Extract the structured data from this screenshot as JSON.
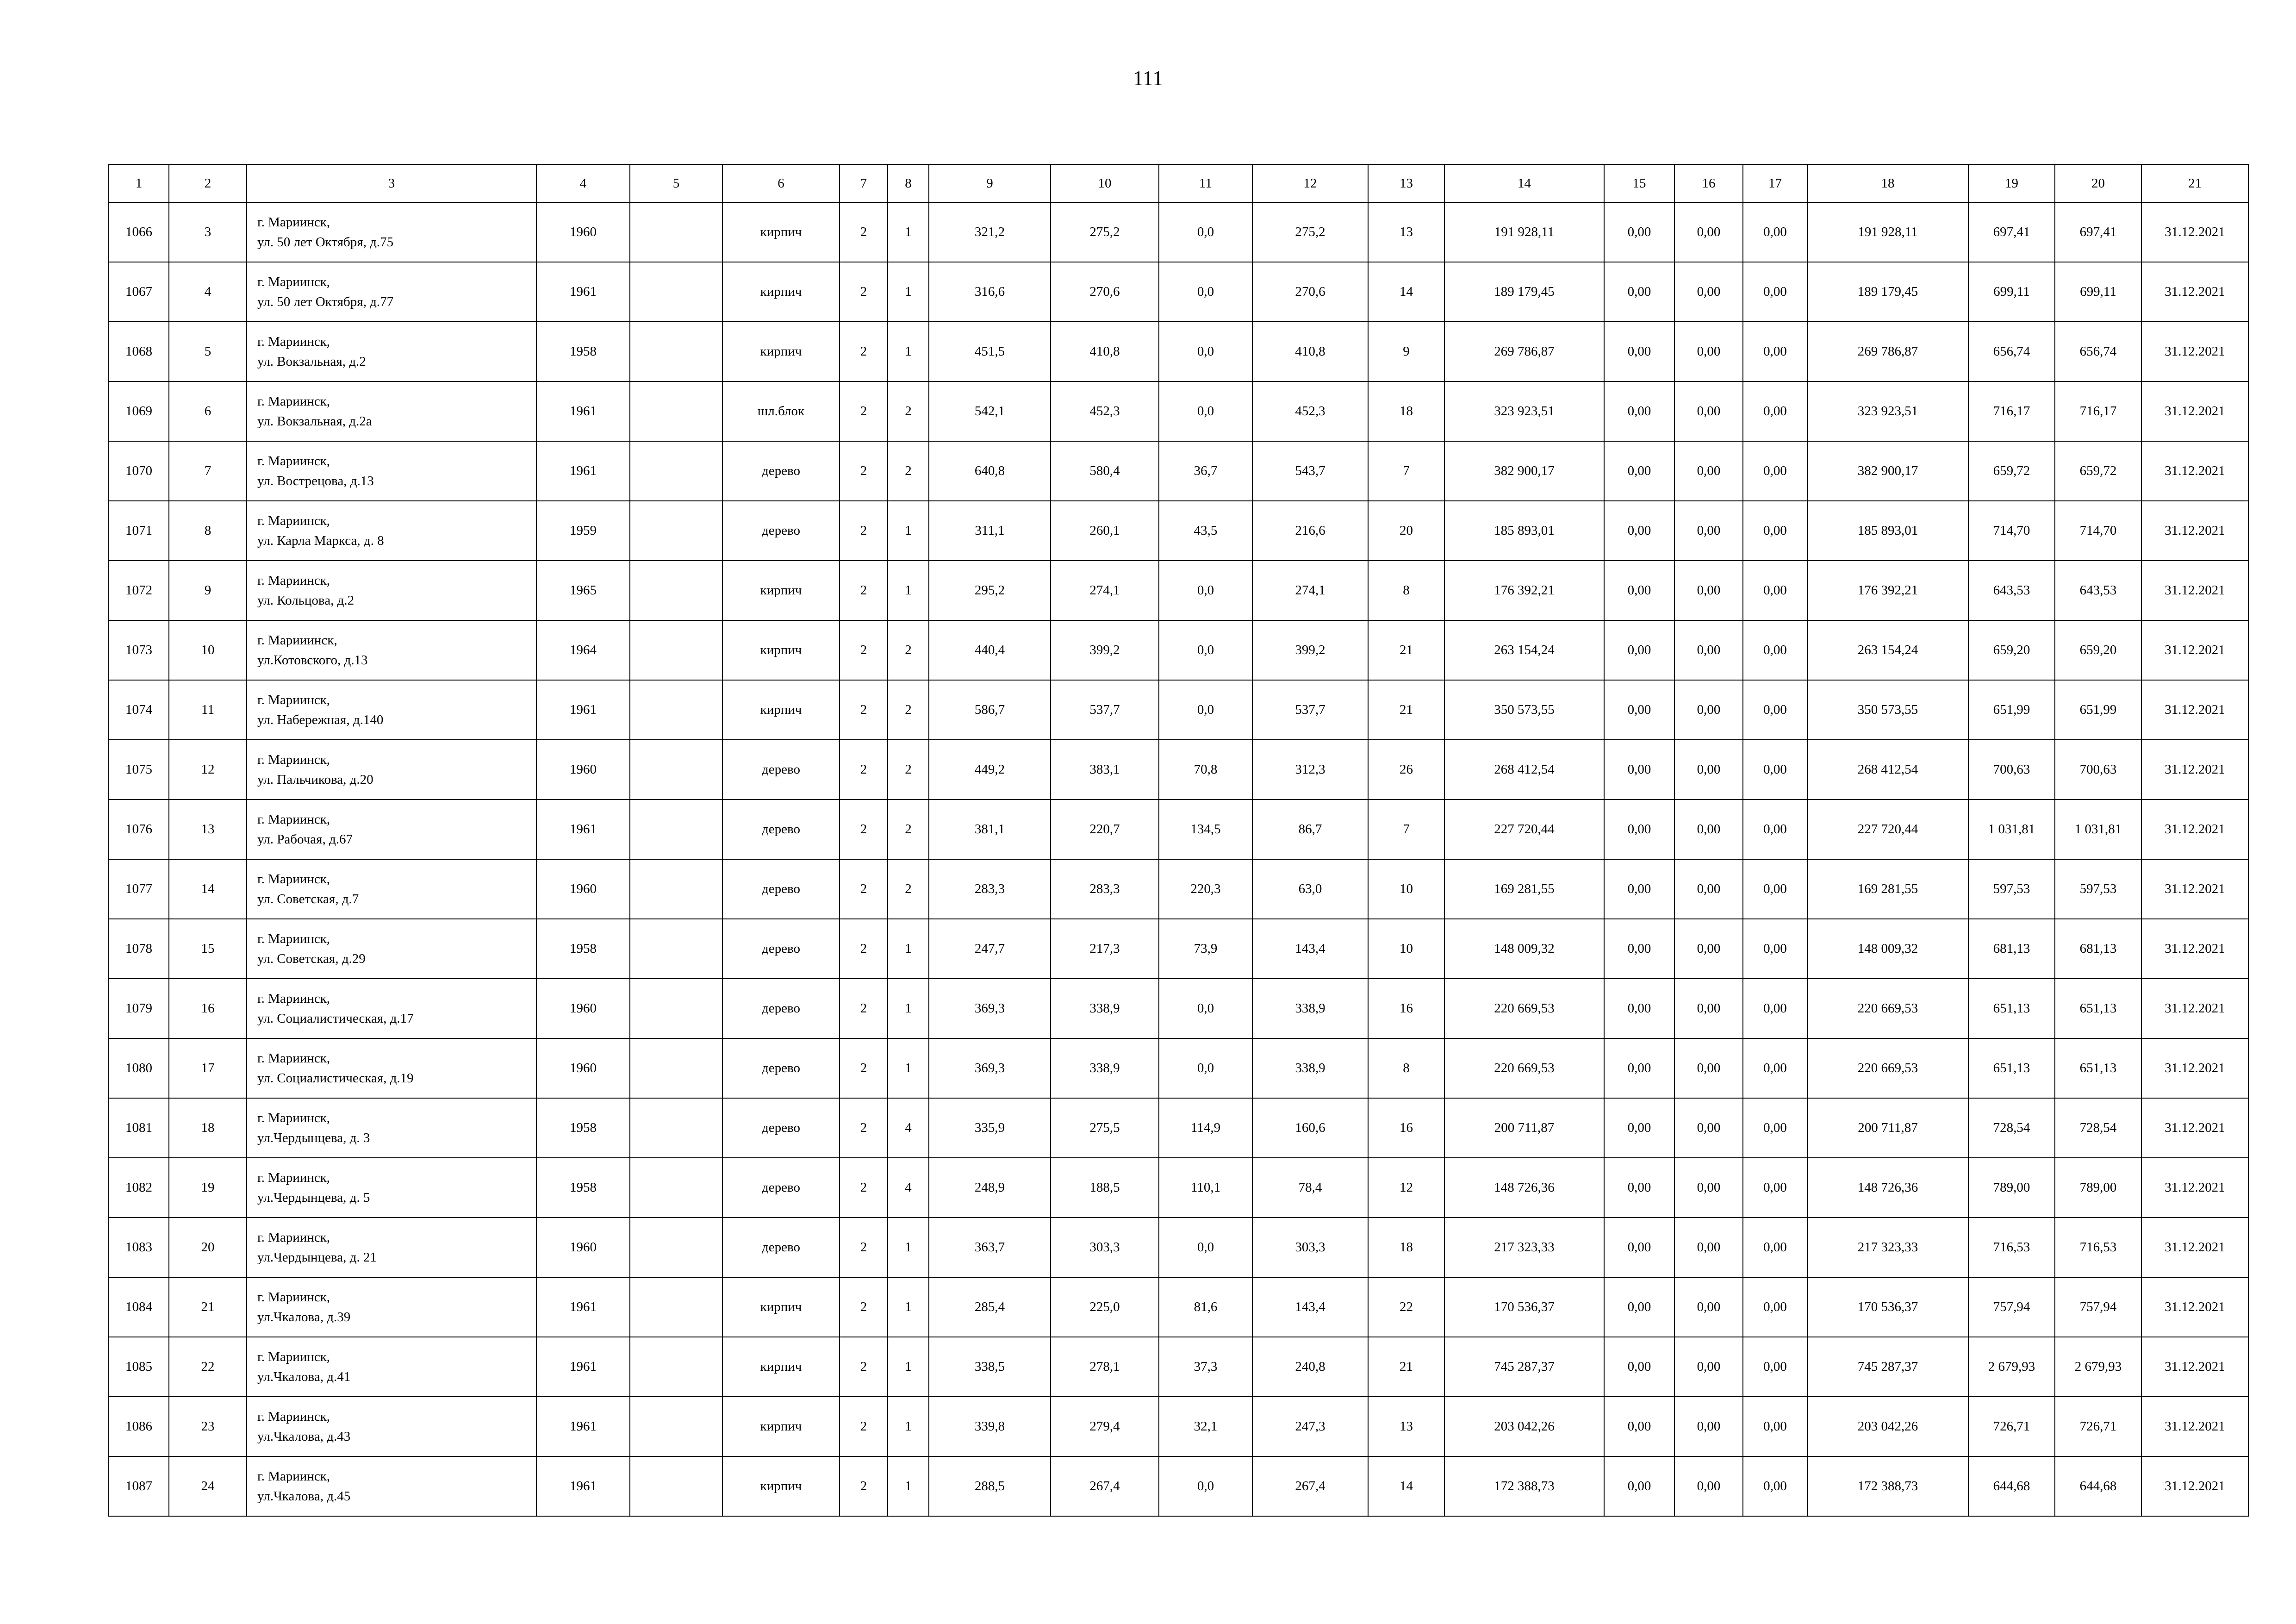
{
  "page_number": "111",
  "table": {
    "headers": [
      "1",
      "2",
      "3",
      "4",
      "5",
      "6",
      "7",
      "8",
      "9",
      "10",
      "11",
      "12",
      "13",
      "14",
      "15",
      "16",
      "17",
      "18",
      "19",
      "20",
      "21"
    ],
    "rows": [
      [
        "1066",
        "3",
        [
          "г. Мариинск,",
          "ул. 50 лет Октября, д.75"
        ],
        "1960",
        "",
        "кирпич",
        "2",
        "1",
        "321,2",
        "275,2",
        "0,0",
        "275,2",
        "13",
        "191 928,11",
        "0,00",
        "0,00",
        "0,00",
        "191 928,11",
        "697,41",
        "697,41",
        "31.12.2021"
      ],
      [
        "1067",
        "4",
        [
          "г. Мариинск,",
          "ул. 50 лет Октября, д.77"
        ],
        "1961",
        "",
        "кирпич",
        "2",
        "1",
        "316,6",
        "270,6",
        "0,0",
        "270,6",
        "14",
        "189 179,45",
        "0,00",
        "0,00",
        "0,00",
        "189 179,45",
        "699,11",
        "699,11",
        "31.12.2021"
      ],
      [
        "1068",
        "5",
        [
          "г. Мариинск,",
          "ул. Вокзальная, д.2"
        ],
        "1958",
        "",
        "кирпич",
        "2",
        "1",
        "451,5",
        "410,8",
        "0,0",
        "410,8",
        "9",
        "269 786,87",
        "0,00",
        "0,00",
        "0,00",
        "269 786,87",
        "656,74",
        "656,74",
        "31.12.2021"
      ],
      [
        "1069",
        "6",
        [
          "г. Мариинск,",
          "ул. Вокзальная, д.2а"
        ],
        "1961",
        "",
        "шл.блок",
        "2",
        "2",
        "542,1",
        "452,3",
        "0,0",
        "452,3",
        "18",
        "323 923,51",
        "0,00",
        "0,00",
        "0,00",
        "323 923,51",
        "716,17",
        "716,17",
        "31.12.2021"
      ],
      [
        "1070",
        "7",
        [
          "г. Мариинск,",
          "ул. Вострецова, д.13"
        ],
        "1961",
        "",
        "дерево",
        "2",
        "2",
        "640,8",
        "580,4",
        "36,7",
        "543,7",
        "7",
        "382 900,17",
        "0,00",
        "0,00",
        "0,00",
        "382 900,17",
        "659,72",
        "659,72",
        "31.12.2021"
      ],
      [
        "1071",
        "8",
        [
          "г. Мариинск,",
          "ул. Карла Маркса, д. 8"
        ],
        "1959",
        "",
        "дерево",
        "2",
        "1",
        "311,1",
        "260,1",
        "43,5",
        "216,6",
        "20",
        "185 893,01",
        "0,00",
        "0,00",
        "0,00",
        "185 893,01",
        "714,70",
        "714,70",
        "31.12.2021"
      ],
      [
        "1072",
        "9",
        [
          "г. Мариинск,",
          "ул. Кольцова, д.2"
        ],
        "1965",
        "",
        "кирпич",
        "2",
        "1",
        "295,2",
        "274,1",
        "0,0",
        "274,1",
        "8",
        "176 392,21",
        "0,00",
        "0,00",
        "0,00",
        "176 392,21",
        "643,53",
        "643,53",
        "31.12.2021"
      ],
      [
        "1073",
        "10",
        [
          "г. Марииинск,",
          "ул.Котовского, д.13"
        ],
        "1964",
        "",
        "кирпич",
        "2",
        "2",
        "440,4",
        "399,2",
        "0,0",
        "399,2",
        "21",
        "263 154,24",
        "0,00",
        "0,00",
        "0,00",
        "263 154,24",
        "659,20",
        "659,20",
        "31.12.2021"
      ],
      [
        "1074",
        "11",
        [
          "г. Мариинск,",
          "ул. Набережная, д.140"
        ],
        "1961",
        "",
        "кирпич",
        "2",
        "2",
        "586,7",
        "537,7",
        "0,0",
        "537,7",
        "21",
        "350 573,55",
        "0,00",
        "0,00",
        "0,00",
        "350 573,55",
        "651,99",
        "651,99",
        "31.12.2021"
      ],
      [
        "1075",
        "12",
        [
          "г. Мариинск,",
          "ул. Пальчикова, д.20"
        ],
        "1960",
        "",
        "дерево",
        "2",
        "2",
        "449,2",
        "383,1",
        "70,8",
        "312,3",
        "26",
        "268 412,54",
        "0,00",
        "0,00",
        "0,00",
        "268 412,54",
        "700,63",
        "700,63",
        "31.12.2021"
      ],
      [
        "1076",
        "13",
        [
          "г. Мариинск,",
          "ул. Рабочая, д.67"
        ],
        "1961",
        "",
        "дерево",
        "2",
        "2",
        "381,1",
        "220,7",
        "134,5",
        "86,7",
        "7",
        "227 720,44",
        "0,00",
        "0,00",
        "0,00",
        "227 720,44",
        "1 031,81",
        "1 031,81",
        "31.12.2021"
      ],
      [
        "1077",
        "14",
        [
          "г. Мариинск,",
          "ул. Советская, д.7"
        ],
        "1960",
        "",
        "дерево",
        "2",
        "2",
        "283,3",
        "283,3",
        "220,3",
        "63,0",
        "10",
        "169 281,55",
        "0,00",
        "0,00",
        "0,00",
        "169 281,55",
        "597,53",
        "597,53",
        "31.12.2021"
      ],
      [
        "1078",
        "15",
        [
          "г. Мариинск,",
          "ул. Советская, д.29"
        ],
        "1958",
        "",
        "дерево",
        "2",
        "1",
        "247,7",
        "217,3",
        "73,9",
        "143,4",
        "10",
        "148 009,32",
        "0,00",
        "0,00",
        "0,00",
        "148 009,32",
        "681,13",
        "681,13",
        "31.12.2021"
      ],
      [
        "1079",
        "16",
        [
          "г. Мариинск,",
          "ул. Социалистическая, д.17"
        ],
        "1960",
        "",
        "дерево",
        "2",
        "1",
        "369,3",
        "338,9",
        "0,0",
        "338,9",
        "16",
        "220 669,53",
        "0,00",
        "0,00",
        "0,00",
        "220 669,53",
        "651,13",
        "651,13",
        "31.12.2021"
      ],
      [
        "1080",
        "17",
        [
          "г. Мариинск,",
          "ул. Социалистическая, д.19"
        ],
        "1960",
        "",
        "дерево",
        "2",
        "1",
        "369,3",
        "338,9",
        "0,0",
        "338,9",
        "8",
        "220 669,53",
        "0,00",
        "0,00",
        "0,00",
        "220 669,53",
        "651,13",
        "651,13",
        "31.12.2021"
      ],
      [
        "1081",
        "18",
        [
          "г. Мариинск,",
          "ул.Чердынцева, д. 3"
        ],
        "1958",
        "",
        "дерево",
        "2",
        "4",
        "335,9",
        "275,5",
        "114,9",
        "160,6",
        "16",
        "200 711,87",
        "0,00",
        "0,00",
        "0,00",
        "200 711,87",
        "728,54",
        "728,54",
        "31.12.2021"
      ],
      [
        "1082",
        "19",
        [
          "г. Мариинск,",
          "ул.Чердынцева, д. 5"
        ],
        "1958",
        "",
        "дерево",
        "2",
        "4",
        "248,9",
        "188,5",
        "110,1",
        "78,4",
        "12",
        "148 726,36",
        "0,00",
        "0,00",
        "0,00",
        "148 726,36",
        "789,00",
        "789,00",
        "31.12.2021"
      ],
      [
        "1083",
        "20",
        [
          "г. Мариинск,",
          "ул.Чердынцева, д. 21"
        ],
        "1960",
        "",
        "дерево",
        "2",
        "1",
        "363,7",
        "303,3",
        "0,0",
        "303,3",
        "18",
        "217 323,33",
        "0,00",
        "0,00",
        "0,00",
        "217 323,33",
        "716,53",
        "716,53",
        "31.12.2021"
      ],
      [
        "1084",
        "21",
        [
          "г. Мариинск,",
          "ул.Чкалова, д.39"
        ],
        "1961",
        "",
        "кирпич",
        "2",
        "1",
        "285,4",
        "225,0",
        "81,6",
        "143,4",
        "22",
        "170 536,37",
        "0,00",
        "0,00",
        "0,00",
        "170 536,37",
        "757,94",
        "757,94",
        "31.12.2021"
      ],
      [
        "1085",
        "22",
        [
          "г. Мариинск,",
          "ул.Чкалова, д.41"
        ],
        "1961",
        "",
        "кирпич",
        "2",
        "1",
        "338,5",
        "278,1",
        "37,3",
        "240,8",
        "21",
        "745 287,37",
        "0,00",
        "0,00",
        "0,00",
        "745 287,37",
        "2 679,93",
        "2 679,93",
        "31.12.2021"
      ],
      [
        "1086",
        "23",
        [
          "г. Мариинск,",
          "ул.Чкалова, д.43"
        ],
        "1961",
        "",
        "кирпич",
        "2",
        "1",
        "339,8",
        "279,4",
        "32,1",
        "247,3",
        "13",
        "203 042,26",
        "0,00",
        "0,00",
        "0,00",
        "203 042,26",
        "726,71",
        "726,71",
        "31.12.2021"
      ],
      [
        "1087",
        "24",
        [
          "г. Мариинск,",
          "ул.Чкалова, д.45"
        ],
        "1961",
        "",
        "кирпич",
        "2",
        "1",
        "288,5",
        "267,4",
        "0,0",
        "267,4",
        "14",
        "172 388,73",
        "0,00",
        "0,00",
        "0,00",
        "172 388,73",
        "644,68",
        "644,68",
        "31.12.2021"
      ]
    ]
  }
}
